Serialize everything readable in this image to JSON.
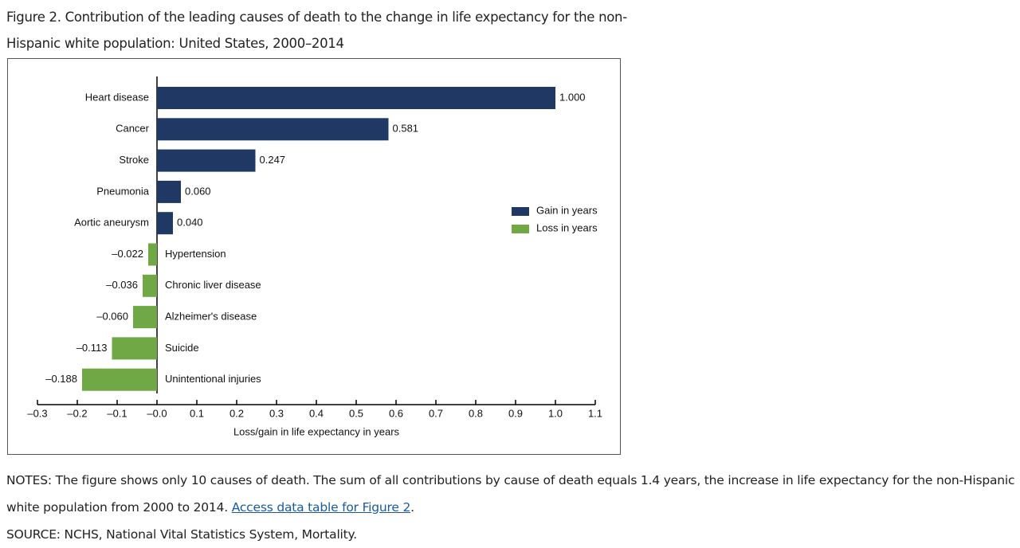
{
  "chart_data": {
    "type": "bar",
    "orientation": "horizontal",
    "title": "Figure 2. Contribution of the leading causes of death to the change in life expectancy for the non-Hispanic white population: United States, 2000–2014",
    "categories": [
      "Heart disease",
      "Cancer",
      "Stroke",
      "Pneumonia",
      "Aortic aneurysm",
      "Hypertension",
      "Chronic liver disease",
      "Alzheimer's disease",
      "Suicide",
      "Unintentional injuries"
    ],
    "series": [
      {
        "name": "Gain in years",
        "color": "#1f3864",
        "values": [
          1.0,
          0.581,
          0.247,
          0.06,
          0.04,
          null,
          null,
          null,
          null,
          null
        ],
        "value_labels": [
          "1.000",
          "0.581",
          "0.247",
          "0.060",
          "0.040",
          null,
          null,
          null,
          null,
          null
        ]
      },
      {
        "name": "Loss in years",
        "color": "#70a845",
        "values": [
          null,
          null,
          null,
          null,
          null,
          -0.022,
          -0.036,
          -0.06,
          -0.113,
          -0.188
        ],
        "value_labels": [
          null,
          null,
          null,
          null,
          null,
          "–0.022",
          "–0.036",
          "–0.060",
          "–0.113",
          "–0.188"
        ]
      }
    ],
    "xlabel": "Loss/gain in life expectancy in years",
    "xlim": [
      -0.3,
      1.1
    ],
    "xticks": [
      {
        "value": -0.3,
        "label": "–0.3"
      },
      {
        "value": -0.2,
        "label": "–0.2"
      },
      {
        "value": -0.1,
        "label": "–0.1"
      },
      {
        "value": 0,
        "label": "–0.0"
      },
      0.1,
      0.2,
      0.3,
      0.4,
      0.5,
      0.6,
      0.7,
      0.8,
      0.9,
      {
        "value": 1.0,
        "label": "1.0"
      },
      1.1
    ]
  },
  "notes": {
    "text": "NOTES: The figure shows only 10 causes of death. The sum of all contributions by cause of death equals 1.4 years, the increase in life expectancy for the non-Hispanic white population from 2000 to 2014.",
    "link": "Access data table for Figure 2",
    "end": "."
  },
  "source": "SOURCE: NCHS, National Vital Statistics System, Mortality."
}
